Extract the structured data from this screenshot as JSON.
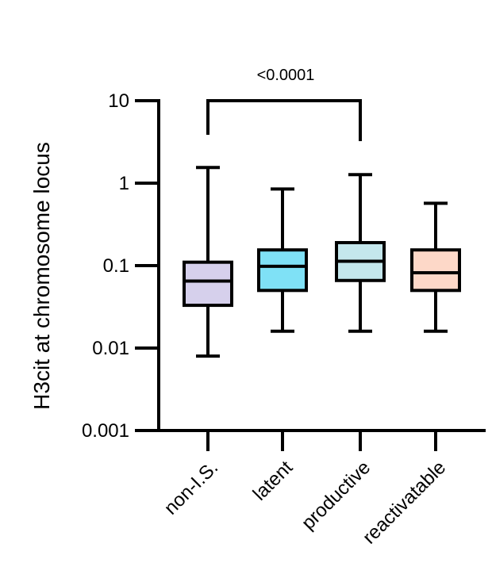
{
  "chart_data": {
    "type": "boxplot",
    "ylabel": "H3cit at chromosome locus",
    "yscale": "log",
    "ylim": [
      0.001,
      10
    ],
    "yticks": [
      {
        "value": 0.001,
        "label": "0.001"
      },
      {
        "value": 0.01,
        "label": "0.01"
      },
      {
        "value": 0.1,
        "label": "0.1"
      },
      {
        "value": 1,
        "label": "1"
      },
      {
        "value": 10,
        "label": "10"
      }
    ],
    "categories": [
      "non-I.S.",
      "latent",
      "productive",
      "reactivatable"
    ],
    "boxes": [
      {
        "category": "non-I.S.",
        "min": 0.008,
        "q1": 0.033,
        "median": 0.065,
        "q3": 0.11,
        "max": 1.55,
        "color": "#d6d0ec"
      },
      {
        "category": "latent",
        "min": 0.016,
        "q1": 0.05,
        "median": 0.098,
        "q3": 0.155,
        "max": 0.85,
        "color": "#7fe1f6"
      },
      {
        "category": "productive",
        "min": 0.016,
        "q1": 0.066,
        "median": 0.113,
        "q3": 0.19,
        "max": 1.27,
        "color": "#c4e7ec"
      },
      {
        "category": "reactivatable",
        "min": 0.016,
        "q1": 0.05,
        "median": 0.082,
        "q3": 0.155,
        "max": 0.57,
        "color": "#fdd8c8"
      }
    ],
    "annotations": [
      {
        "type": "significance-bracket",
        "from": "non-I.S.",
        "to": "productive",
        "text": "<0.0001"
      }
    ]
  }
}
